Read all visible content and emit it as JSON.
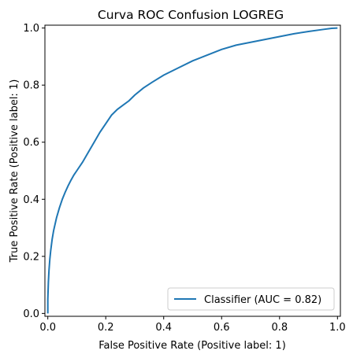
{
  "chart_data": {
    "type": "line",
    "title": "Curva ROC Confusion LOGREG",
    "xlabel": "False Positive Rate (Positive label: 1)",
    "ylabel": "True Positive Rate (Positive label: 1)",
    "xlim": [
      -0.01,
      1.01
    ],
    "ylim": [
      -0.01,
      1.01
    ],
    "xticks": [
      0.0,
      0.2,
      0.4,
      0.6,
      0.8,
      1.0
    ],
    "xtick_labels": [
      "0.0",
      "0.2",
      "0.4",
      "0.6",
      "0.8",
      "1.0"
    ],
    "yticks": [
      0.0,
      0.2,
      0.4,
      0.6,
      0.8,
      1.0
    ],
    "ytick_labels": [
      "0.0",
      "0.2",
      "0.4",
      "0.6",
      "0.8",
      "1.0"
    ],
    "grid": false,
    "legend_position": "lower right",
    "series": [
      {
        "name": "Classifier (AUC = 0.82)",
        "color": "#1f77b4",
        "x": [
          0.0,
          0.0,
          0.002,
          0.004,
          0.007,
          0.01,
          0.015,
          0.02,
          0.03,
          0.04,
          0.05,
          0.06,
          0.07,
          0.08,
          0.09,
          0.1,
          0.12,
          0.14,
          0.16,
          0.18,
          0.2,
          0.22,
          0.24,
          0.26,
          0.28,
          0.3,
          0.33,
          0.36,
          0.4,
          0.45,
          0.5,
          0.55,
          0.6,
          0.65,
          0.7,
          0.75,
          0.8,
          0.85,
          0.9,
          0.95,
          0.98,
          1.0
        ],
        "y": [
          0.0,
          0.05,
          0.11,
          0.15,
          0.19,
          0.22,
          0.26,
          0.29,
          0.335,
          0.37,
          0.4,
          0.425,
          0.447,
          0.467,
          0.485,
          0.5,
          0.53,
          0.565,
          0.6,
          0.635,
          0.665,
          0.695,
          0.715,
          0.73,
          0.745,
          0.765,
          0.79,
          0.81,
          0.835,
          0.86,
          0.885,
          0.905,
          0.925,
          0.94,
          0.95,
          0.96,
          0.97,
          0.98,
          0.988,
          0.995,
          0.999,
          1.0
        ]
      }
    ]
  }
}
